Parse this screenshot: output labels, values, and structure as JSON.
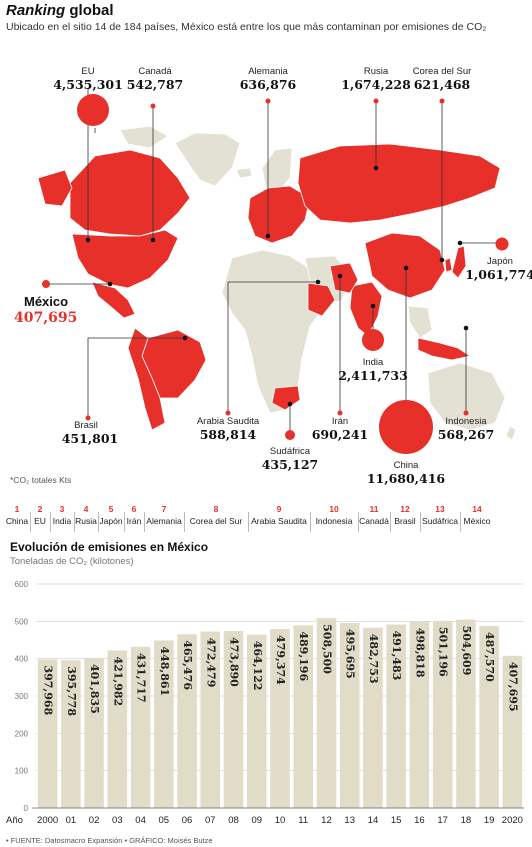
{
  "header": {
    "title_bold": "Ranking",
    "title_rest": "global",
    "subtitle": "Ubicado en el sitio 14 de 184 países, México está entre los que más contaminan por emisiones de CO₂"
  },
  "colors": {
    "accent": "#e8302a",
    "land": "#e3e1d3",
    "bars": "#e0dcc8",
    "grid": "#cfcfcf"
  },
  "map": {
    "countries": [
      {
        "name": "EU",
        "value": "4,535,301"
      },
      {
        "name": "Canadá",
        "value": "542,787"
      },
      {
        "name": "Alemania",
        "value": "636,876"
      },
      {
        "name": "Rusia",
        "value": "1,674,228"
      },
      {
        "name": "Corea del Sur",
        "value": "621,468"
      },
      {
        "name": "Japón",
        "value": "1,061,774"
      },
      {
        "name": "México",
        "value": "407,695"
      },
      {
        "name": "India",
        "value": "2,411,733"
      },
      {
        "name": "Brasil",
        "value": "451,801"
      },
      {
        "name": "Arabia Saudita",
        "value": "588,814"
      },
      {
        "name": "Sudáfrica",
        "value": "435,127"
      },
      {
        "name": "Irán",
        "value": "690,241"
      },
      {
        "name": "China",
        "value": "11,680,416"
      },
      {
        "name": "Indonesia",
        "value": "568,267"
      }
    ],
    "footnote": "*CO₂ totales Kts"
  },
  "ranking": [
    {
      "n": "1",
      "name": "China"
    },
    {
      "n": "2",
      "name": "EU"
    },
    {
      "n": "3",
      "name": "India"
    },
    {
      "n": "4",
      "name": "Rusia"
    },
    {
      "n": "5",
      "name": "Japón"
    },
    {
      "n": "6",
      "name": "Irán"
    },
    {
      "n": "7",
      "name": "Alemania"
    },
    {
      "n": "8",
      "name": "Corea del Sur"
    },
    {
      "n": "9",
      "name": "Arabia Saudita"
    },
    {
      "n": "10",
      "name": "Indonesia"
    },
    {
      "n": "11",
      "name": "Canadá"
    },
    {
      "n": "12",
      "name": "Brasil"
    },
    {
      "n": "13",
      "name": "Sudáfrica"
    },
    {
      "n": "14",
      "name": "México"
    }
  ],
  "chart_data": {
    "type": "bar",
    "title": "Evolución de emisiones en México",
    "subtitle": "Toneladas de CO₂ (kilotones)",
    "xlabel": "Año",
    "ylim": [
      0,
      600
    ],
    "yticks": [
      0,
      100,
      200,
      300,
      400,
      500,
      600
    ],
    "grid": true,
    "categories": [
      "2000",
      "01",
      "02",
      "03",
      "04",
      "05",
      "06",
      "07",
      "08",
      "09",
      "10",
      "11",
      "12",
      "13",
      "14",
      "15",
      "16",
      "17",
      "18",
      "19",
      "2020"
    ],
    "values": [
      397.968,
      395.778,
      401.835,
      421.982,
      431.717,
      448.861,
      465.476,
      472.479,
      473.89,
      464.122,
      479.374,
      489.196,
      508.5,
      495.695,
      482.753,
      491.483,
      498.818,
      501.196,
      504.609,
      487.57,
      407.695
    ],
    "labels": [
      "397,968",
      "395,778",
      "401,835",
      "421,982",
      "431,717",
      "448,861",
      "465,476",
      "472,479",
      "473,890",
      "464,122",
      "479,374",
      "489,196",
      "508,500",
      "495,695",
      "482,753",
      "491,483",
      "498,818",
      "501,196",
      "504,609",
      "487,570",
      "407,695"
    ]
  },
  "footer": {
    "source": "• FUENTE: Datosmacro Expansión • GRÁFICO: Moisés Butze"
  }
}
